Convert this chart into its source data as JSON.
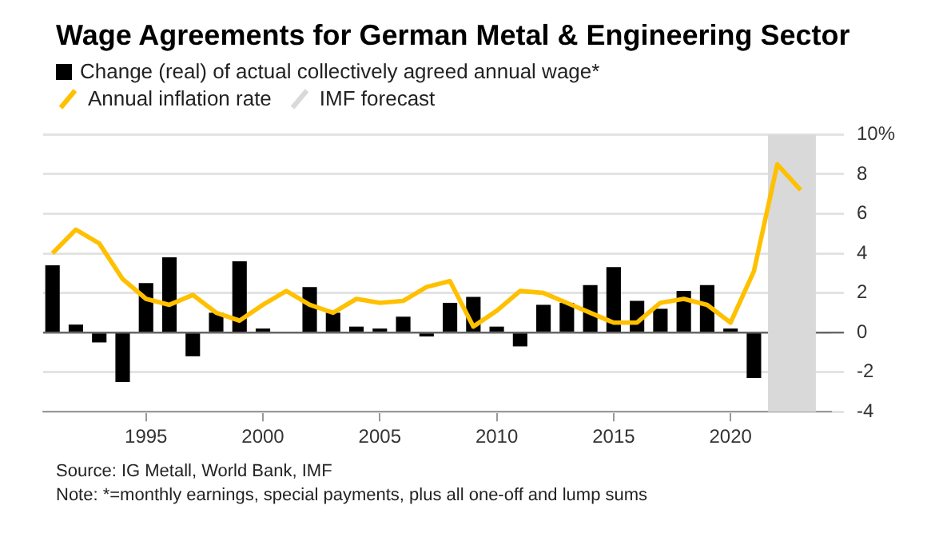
{
  "chart_data": {
    "type": "bar",
    "title": "Wage Agreements for German Metal & Engineering Sector",
    "x": [
      1991,
      1992,
      1993,
      1994,
      1995,
      1996,
      1997,
      1998,
      1999,
      2000,
      2001,
      2002,
      2003,
      2004,
      2005,
      2006,
      2007,
      2008,
      2009,
      2010,
      2011,
      2012,
      2013,
      2014,
      2015,
      2016,
      2017,
      2018,
      2019,
      2020,
      2021
    ],
    "series": [
      {
        "name": "Change (real) of actual collectively agreed annual wage*",
        "color": "#000000",
        "values": [
          3.4,
          0.4,
          -0.5,
          -2.5,
          2.5,
          3.8,
          -1.2,
          1.0,
          3.6,
          0.2,
          0.0,
          2.3,
          1.0,
          0.3,
          0.2,
          0.8,
          -0.2,
          1.5,
          1.8,
          0.3,
          -0.7,
          1.4,
          1.5,
          2.4,
          3.3,
          1.6,
          1.2,
          2.1,
          2.4,
          0.2,
          -2.3
        ]
      },
      {
        "name": "Annual inflation rate",
        "type": "line",
        "color": "#ffc000",
        "x": [
          1991,
          1992,
          1993,
          1994,
          1995,
          1996,
          1997,
          1998,
          1999,
          2000,
          2001,
          2002,
          2003,
          2004,
          2005,
          2006,
          2007,
          2008,
          2009,
          2010,
          2011,
          2012,
          2013,
          2014,
          2015,
          2016,
          2017,
          2018,
          2019,
          2020,
          2021,
          2022,
          2023
        ],
        "values": [
          4.0,
          5.2,
          4.5,
          2.7,
          1.7,
          1.4,
          1.9,
          1.0,
          0.6,
          1.4,
          2.1,
          1.4,
          1.0,
          1.7,
          1.5,
          1.6,
          2.3,
          2.6,
          0.3,
          1.1,
          2.1,
          2.0,
          1.5,
          1.0,
          0.5,
          0.5,
          1.5,
          1.7,
          1.4,
          0.5,
          3.1,
          8.5,
          7.2
        ]
      }
    ],
    "bands": [
      {
        "axis": "x",
        "from": 2021.6,
        "to": 2023.65,
        "label": "IMF forecast",
        "color": "#d9d9d9"
      }
    ],
    "xlim": [
      1990.6,
      2024.3
    ],
    "xticks": [
      1995,
      2000,
      2005,
      2010,
      2015,
      2020
    ],
    "ylim": [
      -4,
      10
    ],
    "yticks": [
      -4,
      -2,
      0,
      2,
      4,
      6,
      8,
      {
        "value": 10,
        "label": "10%"
      }
    ],
    "grid": "y",
    "legend": "top left",
    "marker": "none",
    "line_style": "solid",
    "annotations": [
      "Source: IG Metall, World Bank, IMF",
      "Note: *=monthly earnings, special payments, plus all one-off and lump sums"
    ]
  }
}
